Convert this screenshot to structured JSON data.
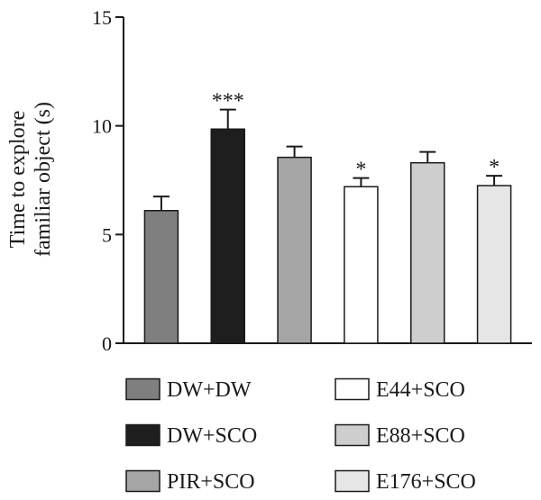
{
  "chart_data": {
    "type": "bar",
    "ylabel_lines": [
      "Time to explore",
      "familiar object (s)"
    ],
    "ylim": [
      0,
      15
    ],
    "yticks": [
      0,
      5,
      10,
      15
    ],
    "grid": false,
    "legend_position": "bottom",
    "categories": [
      "DW+DW",
      "DW+SCO",
      "PIR+SCO",
      "E44+SCO",
      "E88+SCO",
      "E176+SCO"
    ],
    "values": [
      6.1,
      9.85,
      8.55,
      7.2,
      8.3,
      7.25
    ],
    "errors": [
      0.65,
      0.9,
      0.5,
      0.4,
      0.5,
      0.45
    ],
    "significance": [
      "",
      "***",
      "",
      "*",
      "",
      "*"
    ],
    "colors": [
      "#7f7f7f",
      "#1e1e1e",
      "#a5a5a5",
      "#ffffff",
      "#cecece",
      "#e6e6e6"
    ]
  }
}
